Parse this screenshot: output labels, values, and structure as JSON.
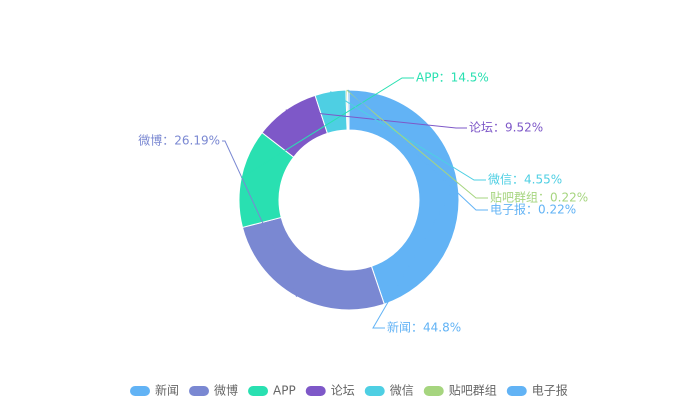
{
  "chart_data": {
    "type": "pie",
    "variant": "donut",
    "slices": [
      {
        "name": "新闻",
        "value": 44.8,
        "label": "新闻：44.8%",
        "color": "#62b3f5"
      },
      {
        "name": "微博",
        "value": 26.19,
        "label": "微博：26.19%",
        "color": "#7a88d2"
      },
      {
        "name": "APP",
        "value": 14.5,
        "label": "APP：14.5%",
        "color": "#29e0b1"
      },
      {
        "name": "论坛",
        "value": 9.52,
        "label": "论坛：9.52%",
        "color": "#7e58c8"
      },
      {
        "name": "微信",
        "value": 4.55,
        "label": "微信：4.55%",
        "color": "#4ecfe3"
      },
      {
        "name": "贴吧群组",
        "value": 0.22,
        "label": "贴吧群组：0.22%",
        "color": "#a6d57f"
      },
      {
        "name": "电子报",
        "value": 0.22,
        "label": "电子报：0.22%",
        "color": "#62b3f5"
      }
    ],
    "legend": {
      "position": "bottom-center",
      "items": [
        "新闻",
        "微博",
        "APP",
        "论坛",
        "微信",
        "贴吧群组",
        "电子报"
      ]
    }
  }
}
